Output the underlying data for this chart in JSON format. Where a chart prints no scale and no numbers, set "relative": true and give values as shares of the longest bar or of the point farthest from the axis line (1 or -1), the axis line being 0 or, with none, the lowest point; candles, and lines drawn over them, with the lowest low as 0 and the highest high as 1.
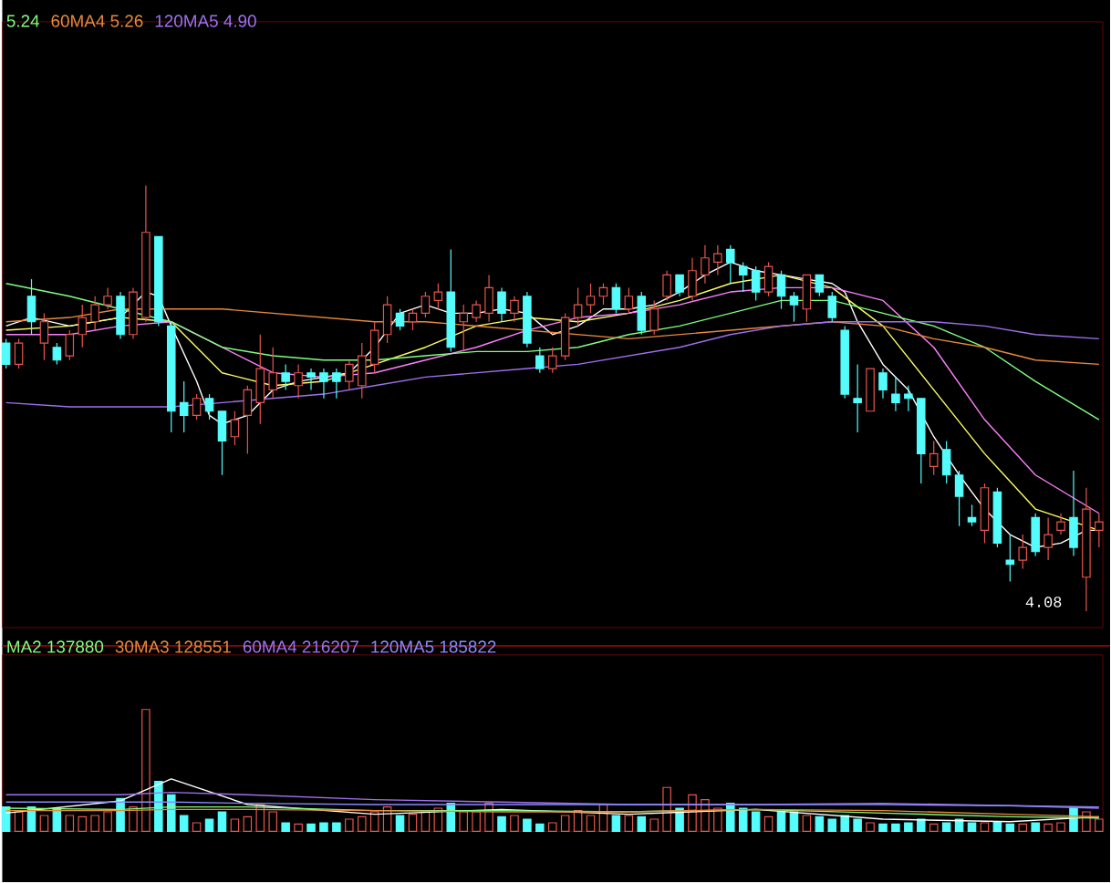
{
  "chart_data": [
    {
      "type": "candlestick",
      "relative": true,
      "categories": [
        null,
        null,
        null,
        null,
        null,
        null,
        null,
        null,
        null,
        null,
        null,
        null,
        null,
        null,
        null,
        null,
        null,
        null,
        null,
        null,
        null,
        null,
        null,
        null,
        null,
        null,
        null,
        null,
        null,
        null,
        null,
        null,
        null,
        null,
        null,
        null,
        null,
        null,
        null,
        null,
        null,
        null,
        null,
        null,
        null,
        null,
        null,
        null,
        null,
        null,
        null,
        null,
        null,
        null,
        null,
        null,
        null,
        null,
        null,
        null,
        null,
        null,
        null,
        null,
        null,
        null,
        null,
        null,
        null,
        null,
        null,
        null,
        null,
        null,
        null,
        null,
        null,
        null,
        null,
        null,
        null,
        null,
        null,
        null,
        null,
        null,
        null
      ],
      "ohlc": [
        [
          0.63,
          0.64,
          0.57,
          0.58
        ],
        [
          0.58,
          0.64,
          0.57,
          0.63
        ],
        [
          0.74,
          0.78,
          0.65,
          0.68
        ],
        [
          0.63,
          0.7,
          0.59,
          0.68
        ],
        [
          0.62,
          0.63,
          0.58,
          0.59
        ],
        [
          0.6,
          0.66,
          0.59,
          0.65
        ],
        [
          0.65,
          0.72,
          0.62,
          0.69
        ],
        [
          0.68,
          0.74,
          0.66,
          0.72
        ],
        [
          0.72,
          0.76,
          0.71,
          0.74
        ],
        [
          0.74,
          0.75,
          0.64,
          0.65
        ],
        [
          0.65,
          0.76,
          0.64,
          0.75
        ],
        [
          0.69,
          1,
          0.68,
          0.89
        ],
        [
          0.88,
          0.88,
          0.67,
          0.68
        ],
        [
          0.67,
          0.68,
          0.42,
          0.47
        ],
        [
          0.49,
          0.54,
          0.42,
          0.46
        ],
        [
          0.46,
          0.51,
          0.45,
          0.5
        ],
        [
          0.5,
          0.51,
          0.45,
          0.47
        ],
        [
          0.47,
          0.47,
          0.32,
          0.4
        ],
        [
          0.41,
          0.47,
          0.39,
          0.45
        ],
        [
          0.46,
          0.53,
          0.37,
          0.52
        ],
        [
          0.49,
          0.65,
          0.44,
          0.57
        ],
        [
          0.52,
          0.62,
          0.5,
          0.56
        ],
        [
          0.56,
          0.58,
          0.52,
          0.54
        ],
        [
          0.53,
          0.58,
          0.5,
          0.56
        ],
        [
          0.56,
          0.57,
          0.52,
          0.55
        ],
        [
          0.56,
          0.57,
          0.5,
          0.54
        ],
        [
          0.56,
          0.57,
          0.5,
          0.54
        ],
        [
          0.54,
          0.59,
          0.52,
          0.58
        ],
        [
          0.53,
          0.63,
          0.5,
          0.6
        ],
        [
          0.58,
          0.68,
          0.56,
          0.66
        ],
        [
          0.65,
          0.74,
          0.63,
          0.72
        ],
        [
          0.7,
          0.71,
          0.66,
          0.67
        ],
        [
          0.68,
          0.71,
          0.66,
          0.7
        ],
        [
          0.7,
          0.75,
          0.69,
          0.74
        ],
        [
          0.73,
          0.77,
          0.71,
          0.75
        ],
        [
          0.75,
          0.85,
          0.61,
          0.62
        ],
        [
          0.68,
          0.72,
          0.61,
          0.7
        ],
        [
          0.69,
          0.73,
          0.68,
          0.72
        ],
        [
          0.7,
          0.79,
          0.68,
          0.76
        ],
        [
          0.75,
          0.76,
          0.68,
          0.7
        ],
        [
          0.7,
          0.74,
          0.68,
          0.73
        ],
        [
          0.74,
          0.75,
          0.62,
          0.63
        ],
        [
          0.6,
          0.62,
          0.56,
          0.57
        ],
        [
          0.57,
          0.62,
          0.56,
          0.6
        ],
        [
          0.6,
          0.7,
          0.59,
          0.69
        ],
        [
          0.69,
          0.76,
          0.67,
          0.72
        ],
        [
          0.72,
          0.77,
          0.7,
          0.74
        ],
        [
          0.74,
          0.77,
          0.72,
          0.76
        ],
        [
          0.76,
          0.77,
          0.7,
          0.71
        ],
        [
          0.71,
          0.76,
          0.7,
          0.74
        ],
        [
          0.74,
          0.75,
          0.65,
          0.66
        ],
        [
          0.66,
          0.73,
          0.65,
          0.71
        ],
        [
          0.74,
          0.8,
          0.73,
          0.79
        ],
        [
          0.79,
          0.79,
          0.74,
          0.75
        ],
        [
          0.74,
          0.83,
          0.73,
          0.8
        ],
        [
          0.79,
          0.86,
          0.77,
          0.83
        ],
        [
          0.82,
          0.86,
          0.79,
          0.84
        ],
        [
          0.85,
          0.86,
          0.77,
          0.82
        ],
        [
          0.81,
          0.82,
          0.75,
          0.79
        ],
        [
          0.8,
          0.81,
          0.73,
          0.75
        ],
        [
          0.75,
          0.82,
          0.74,
          0.81
        ],
        [
          0.79,
          0.8,
          0.71,
          0.74
        ],
        [
          0.74,
          0.75,
          0.68,
          0.72
        ],
        [
          0.71,
          0.79,
          0.68,
          0.79
        ],
        [
          0.79,
          0.79,
          0.74,
          0.75
        ],
        [
          0.74,
          0.75,
          0.68,
          0.69
        ],
        [
          0.66,
          0.67,
          0.5,
          0.51
        ],
        [
          0.5,
          0.58,
          0.42,
          0.49
        ],
        [
          0.47,
          0.57,
          0.47,
          0.57
        ],
        [
          0.56,
          0.57,
          0.5,
          0.52
        ],
        [
          0.51,
          0.55,
          0.47,
          0.49
        ],
        [
          0.51,
          0.53,
          0.47,
          0.5
        ],
        [
          0.5,
          0.5,
          0.3,
          0.37
        ],
        [
          0.34,
          0.4,
          0.32,
          0.37
        ],
        [
          0.38,
          0.4,
          0.3,
          0.32
        ],
        [
          0.32,
          0.33,
          0.2,
          0.27
        ],
        [
          0.22,
          0.25,
          0.2,
          0.21
        ],
        [
          0.19,
          0.3,
          0.16,
          0.29
        ],
        [
          0.28,
          0.29,
          0.15,
          0.16
        ],
        [
          0.12,
          0.18,
          0.07,
          0.11
        ],
        [
          0.12,
          0.18,
          0.1,
          0.15
        ],
        [
          0.22,
          0.23,
          0.13,
          0.14
        ],
        [
          0.15,
          0.22,
          0.12,
          0.18
        ],
        [
          0.19,
          0.23,
          0.18,
          0.21
        ],
        [
          0.22,
          0.33,
          0.13,
          0.15
        ],
        [
          0.08,
          0.29,
          0,
          0.24
        ],
        [
          0.19,
          0.23,
          0.15,
          0.21
        ]
      ],
      "colors": [
        "#54fcfc",
        "#e8564e",
        "#54fcfc",
        "#e8564e",
        "#54fcfc",
        "#e8564e",
        "#e8564e",
        "#e8564e",
        "#e8564e",
        "#54fcfc",
        "#e8564e",
        "#e8564e",
        "#54fcfc",
        "#54fcfc",
        "#54fcfc",
        "#e8564e",
        "#54fcfc",
        "#54fcfc",
        "#e8564e",
        "#e8564e",
        "#e8564e",
        "#e8564e",
        "#54fcfc",
        "#e8564e",
        "#54fcfc",
        "#54fcfc",
        "#54fcfc",
        "#e8564e",
        "#e8564e",
        "#e8564e",
        "#e8564e",
        "#54fcfc",
        "#e8564e",
        "#e8564e",
        "#e8564e",
        "#54fcfc",
        "#e8564e",
        "#e8564e",
        "#e8564e",
        "#54fcfc",
        "#e8564e",
        "#54fcfc",
        "#54fcfc",
        "#e8564e",
        "#e8564e",
        "#e8564e",
        "#e8564e",
        "#e8564e",
        "#54fcfc",
        "#e8564e",
        "#54fcfc",
        "#e8564e",
        "#e8564e",
        "#54fcfc",
        "#e8564e",
        "#e8564e",
        "#e8564e",
        "#54fcfc",
        "#54fcfc",
        "#54fcfc",
        "#e8564e",
        "#54fcfc",
        "#54fcfc",
        "#e8564e",
        "#54fcfc",
        "#54fcfc",
        "#54fcfc",
        "#54fcfc",
        "#e8564e",
        "#54fcfc",
        "#54fcfc",
        "#54fcfc",
        "#54fcfc",
        "#e8564e",
        "#54fcfc",
        "#54fcfc",
        "#54fcfc",
        "#e8564e",
        "#54fcfc",
        "#54fcfc",
        "#e8564e",
        "#54fcfc",
        "#e8564e",
        "#e8564e",
        "#54fcfc",
        "#e8564e",
        "#e8564e"
      ],
      "series": [
        {
          "type": "line",
          "color": "#ffffff",
          "values": [
            0.67,
            null,
            0.69,
            null,
            null,
            0.67,
            null,
            null,
            null,
            0.69,
            null,
            0.75,
            0.74,
            0.67,
            null,
            0.54,
            0.46,
            0.44,
            null,
            0.46,
            null,
            0.52,
            null,
            0.54,
            null,
            0.55,
            null,
            0.56,
            null,
            0.62,
            null,
            0.7,
            null,
            0.72,
            null,
            0.7,
            null,
            0.7,
            null,
            0.71,
            null,
            0.7,
            null,
            0.65,
            null,
            0.67,
            null,
            0.71,
            null,
            0.71,
            null,
            0.72,
            null,
            0.75,
            null,
            0.79,
            null,
            0.82,
            null,
            0.8,
            null,
            0.79,
            null,
            0.78,
            null,
            0.77,
            0.75,
            0.68,
            null,
            0.58,
            null,
            0.52,
            null,
            0.41,
            null,
            0.32,
            null,
            0.24,
            null,
            0.18,
            null,
            0.15,
            null,
            0.16,
            null,
            0.19,
            0.19
          ]
        },
        {
          "type": "line",
          "color": "#ffff66",
          "values": [
            0.66,
            null,
            null,
            null,
            null,
            0.67,
            null,
            null,
            null,
            0.69,
            null,
            null,
            null,
            0.68,
            null,
            null,
            null,
            0.56,
            null,
            null,
            null,
            0.53,
            null,
            null,
            null,
            0.54,
            null,
            null,
            null,
            0.58,
            null,
            null,
            null,
            0.62,
            null,
            null,
            null,
            0.67,
            null,
            null,
            null,
            0.69,
            null,
            null,
            null,
            0.68,
            null,
            null,
            null,
            0.7,
            null,
            null,
            null,
            0.73,
            null,
            null,
            null,
            0.77,
            null,
            null,
            null,
            0.79,
            null,
            null,
            null,
            0.76,
            null,
            null,
            null,
            0.67,
            null,
            null,
            null,
            0.52,
            null,
            null,
            null,
            0.37,
            null,
            null,
            null,
            0.24,
            null,
            null,
            null,
            null,
            0.19
          ]
        },
        {
          "type": "line",
          "color": "#ff80ff",
          "values": [
            0.65,
            null,
            null,
            null,
            null,
            0.65,
            null,
            null,
            null,
            0.67,
            null,
            null,
            null,
            0.68,
            null,
            null,
            null,
            0.62,
            null,
            null,
            null,
            0.56,
            null,
            null,
            null,
            0.55,
            null,
            null,
            null,
            0.56,
            null,
            null,
            null,
            0.59,
            null,
            null,
            null,
            0.62,
            null,
            null,
            null,
            0.66,
            null,
            null,
            null,
            0.69,
            null,
            null,
            null,
            0.7,
            null,
            null,
            null,
            0.72,
            null,
            null,
            null,
            0.75,
            null,
            null,
            null,
            0.76,
            null,
            null,
            null,
            0.76,
            null,
            null,
            null,
            0.73,
            null,
            null,
            null,
            0.62,
            null,
            null,
            null,
            0.45,
            null,
            null,
            null,
            0.32,
            null,
            null,
            null,
            null,
            0.23
          ]
        },
        {
          "type": "line",
          "color": "#80ff80",
          "name": "5.24",
          "values": [
            0.77,
            null,
            null,
            null,
            null,
            0.74,
            null,
            null,
            null,
            0.71,
            null,
            null,
            null,
            0.68,
            null,
            null,
            null,
            0.62,
            null,
            null,
            null,
            0.6,
            null,
            null,
            null,
            0.59,
            null,
            null,
            null,
            0.59,
            null,
            null,
            null,
            0.6,
            null,
            null,
            null,
            0.61,
            null,
            null,
            null,
            0.61,
            null,
            null,
            null,
            0.62,
            null,
            null,
            null,
            0.65,
            null,
            null,
            null,
            0.67,
            null,
            null,
            null,
            0.7,
            null,
            null,
            null,
            0.73,
            null,
            null,
            null,
            0.73,
            null,
            null,
            null,
            0.7,
            null,
            null,
            null,
            0.67,
            null,
            null,
            null,
            0.62,
            null,
            null,
            null,
            0.54,
            null,
            null,
            null,
            null,
            0.45
          ]
        },
        {
          "type": "line",
          "color": "#e8893a",
          "name": "60MA4 5.26",
          "values": [
            0.68,
            null,
            null,
            null,
            null,
            0.69,
            null,
            null,
            null,
            0.71,
            null,
            null,
            null,
            0.71,
            null,
            null,
            null,
            0.71,
            null,
            null,
            null,
            0.7,
            null,
            null,
            null,
            0.69,
            null,
            null,
            null,
            0.68,
            null,
            null,
            null,
            0.68,
            null,
            null,
            null,
            0.67,
            null,
            null,
            null,
            0.66,
            null,
            null,
            null,
            0.65,
            null,
            null,
            null,
            0.64,
            null,
            null,
            null,
            0.65,
            null,
            null,
            null,
            0.66,
            null,
            null,
            null,
            0.67,
            null,
            null,
            null,
            0.68,
            null,
            null,
            null,
            0.67,
            null,
            null,
            null,
            0.64,
            null,
            null,
            null,
            0.62,
            null,
            null,
            null,
            0.59,
            null,
            null,
            null,
            null,
            0.58
          ]
        },
        {
          "type": "line",
          "color": "#a070f0",
          "name": "120MA5 4.90",
          "values": [
            0.49,
            null,
            null,
            null,
            null,
            0.48,
            null,
            null,
            null,
            0.48,
            null,
            null,
            null,
            0.48,
            null,
            null,
            null,
            0.49,
            null,
            null,
            null,
            0.5,
            null,
            null,
            null,
            0.51,
            null,
            null,
            null,
            0.53,
            null,
            null,
            null,
            0.55,
            null,
            null,
            null,
            0.56,
            null,
            null,
            null,
            0.57,
            null,
            null,
            null,
            0.58,
            null,
            null,
            null,
            0.6,
            null,
            null,
            null,
            0.62,
            null,
            null,
            null,
            0.65,
            null,
            null,
            null,
            0.67,
            null,
            null,
            null,
            0.68,
            null,
            null,
            null,
            0.68,
            null,
            null,
            null,
            0.68,
            null,
            null,
            null,
            0.67,
            null,
            null,
            null,
            0.65,
            null,
            null,
            null,
            null,
            0.64
          ]
        }
      ],
      "annotations": [
        "4.08"
      ]
    },
    {
      "type": "bar",
      "relative": true,
      "categories": [
        null,
        null,
        null,
        null,
        null,
        null,
        null,
        null,
        null,
        null,
        null,
        null,
        null,
        null,
        null,
        null,
        null,
        null,
        null,
        null,
        null,
        null,
        null,
        null,
        null,
        null,
        null,
        null,
        null,
        null,
        null,
        null,
        null,
        null,
        null,
        null,
        null,
        null,
        null,
        null,
        null,
        null,
        null,
        null,
        null,
        null,
        null,
        null,
        null,
        null,
        null,
        null,
        null,
        null,
        null,
        null,
        null,
        null,
        null,
        null,
        null,
        null,
        null,
        null,
        null,
        null,
        null,
        null,
        null,
        null,
        null,
        null,
        null,
        null,
        null,
        null,
        null,
        null,
        null,
        null,
        null,
        null,
        null,
        null,
        null,
        null,
        null
      ],
      "series": [
        {
          "type": "bar",
          "values": [
            0.2,
            0.16,
            0.2,
            0.13,
            0.19,
            0.13,
            0.12,
            0.13,
            0.16,
            0.27,
            0.2,
            1,
            0.41,
            0.3,
            0.13,
            0.07,
            0.1,
            0.16,
            0.1,
            0.12,
            0.22,
            0.16,
            0.07,
            0.06,
            0.06,
            0.07,
            0.07,
            0.1,
            0.12,
            0.16,
            0.2,
            0.13,
            0.14,
            0.16,
            0.19,
            0.23,
            0.16,
            0.16,
            0.23,
            0.12,
            0.13,
            0.1,
            0.06,
            0.07,
            0.13,
            0.17,
            0.13,
            0.22,
            0.13,
            0.13,
            0.12,
            0.1,
            0.36,
            0.19,
            0.3,
            0.26,
            0.19,
            0.23,
            0.19,
            0.16,
            0.12,
            0.16,
            0.16,
            0.13,
            0.12,
            0.1,
            0.13,
            0.1,
            0.07,
            0.06,
            0.06,
            0.07,
            0.1,
            0.06,
            0.07,
            0.1,
            0.07,
            0.07,
            0.08,
            0.06,
            0.06,
            0.07,
            0.06,
            0.07,
            0.2,
            0.16,
            0.1
          ],
          "colors": [
            "#54fcfc",
            "#e8564e",
            "#54fcfc",
            "#e8564e",
            "#54fcfc",
            "#e8564e",
            "#e8564e",
            "#e8564e",
            "#e8564e",
            "#54fcfc",
            "#e8564e",
            "#e8564e",
            "#54fcfc",
            "#54fcfc",
            "#54fcfc",
            "#e8564e",
            "#54fcfc",
            "#54fcfc",
            "#e8564e",
            "#e8564e",
            "#e8564e",
            "#e8564e",
            "#54fcfc",
            "#e8564e",
            "#54fcfc",
            "#54fcfc",
            "#54fcfc",
            "#e8564e",
            "#e8564e",
            "#e8564e",
            "#e8564e",
            "#54fcfc",
            "#e8564e",
            "#e8564e",
            "#e8564e",
            "#54fcfc",
            "#e8564e",
            "#e8564e",
            "#e8564e",
            "#54fcfc",
            "#e8564e",
            "#54fcfc",
            "#54fcfc",
            "#e8564e",
            "#e8564e",
            "#e8564e",
            "#e8564e",
            "#e8564e",
            "#54fcfc",
            "#e8564e",
            "#54fcfc",
            "#e8564e",
            "#e8564e",
            "#54fcfc",
            "#e8564e",
            "#e8564e",
            "#e8564e",
            "#54fcfc",
            "#54fcfc",
            "#54fcfc",
            "#e8564e",
            "#54fcfc",
            "#54fcfc",
            "#e8564e",
            "#54fcfc",
            "#54fcfc",
            "#54fcfc",
            "#54fcfc",
            "#e8564e",
            "#54fcfc",
            "#54fcfc",
            "#54fcfc",
            "#54fcfc",
            "#e8564e",
            "#54fcfc",
            "#54fcfc",
            "#54fcfc",
            "#e8564e",
            "#54fcfc",
            "#54fcfc",
            "#e8564e",
            "#54fcfc",
            "#e8564e",
            "#e8564e",
            "#54fcfc",
            "#e8564e",
            "#e8564e"
          ]
        },
        {
          "type": "line",
          "color": "#ffffff",
          "values": [
            0.15,
            null,
            null,
            null,
            null,
            null,
            null,
            null,
            null,
            0.25,
            null,
            null,
            null,
            0.43,
            null,
            null,
            null,
            null,
            null,
            0.22,
            null,
            null,
            null,
            null,
            null,
            null,
            null,
            null,
            null,
            0.14,
            null,
            null,
            null,
            null,
            null,
            null,
            null,
            null,
            null,
            0.18,
            null,
            null,
            null,
            null,
            null,
            null,
            null,
            null,
            null,
            0.14,
            null,
            null,
            null,
            null,
            null,
            null,
            null,
            null,
            null,
            0.18,
            null,
            null,
            null,
            null,
            null,
            null,
            null,
            null,
            null,
            0.1,
            null,
            null,
            null,
            null,
            null,
            null,
            null,
            null,
            null,
            0.08,
            null,
            null,
            null,
            null,
            null,
            null,
            0.12
          ]
        },
        {
          "type": "line",
          "color": "#80ff80",
          "name": "MA2 137880",
          "values": [
            0.19,
            null,
            null,
            null,
            null,
            null,
            null,
            null,
            null,
            0.18,
            null,
            null,
            null,
            0.2,
            null,
            null,
            null,
            null,
            null,
            0.2,
            null,
            null,
            null,
            null,
            null,
            null,
            null,
            null,
            null,
            0.17,
            null,
            null,
            null,
            null,
            null,
            null,
            null,
            null,
            null,
            0.17,
            null,
            null,
            null,
            null,
            null,
            null,
            null,
            null,
            null,
            0.16,
            null,
            null,
            null,
            null,
            null,
            null,
            null,
            null,
            null,
            0.18,
            null,
            null,
            null,
            null,
            null,
            null,
            null,
            null,
            null,
            0.15,
            null,
            null,
            null,
            null,
            null,
            null,
            null,
            null,
            null,
            0.12,
            null,
            null,
            null,
            null,
            null,
            null,
            0.11
          ]
        },
        {
          "type": "line",
          "color": "#e8893a",
          "name": "30MA3 128551",
          "values": [
            0.17,
            null,
            null,
            null,
            null,
            null,
            null,
            null,
            null,
            0.17,
            null,
            null,
            null,
            0.18,
            null,
            null,
            null,
            null,
            null,
            0.18,
            null,
            null,
            null,
            null,
            null,
            null,
            null,
            null,
            null,
            0.17,
            null,
            null,
            null,
            null,
            null,
            null,
            null,
            null,
            null,
            0.16,
            null,
            null,
            null,
            null,
            null,
            null,
            null,
            null,
            null,
            0.16,
            null,
            null,
            null,
            null,
            null,
            null,
            null,
            null,
            null,
            0.18,
            null,
            null,
            null,
            null,
            null,
            null,
            null,
            null,
            null,
            0.17,
            null,
            null,
            null,
            null,
            null,
            null,
            null,
            null,
            null,
            0.14,
            null,
            null,
            null,
            null,
            null,
            null,
            0.12
          ]
        },
        {
          "type": "line",
          "color": "#a070f0",
          "name": "60MA4 216207",
          "values": [
            0.3,
            null,
            null,
            null,
            null,
            null,
            null,
            null,
            null,
            0.3,
            null,
            null,
            null,
            0.32,
            null,
            null,
            null,
            null,
            null,
            0.3,
            null,
            null,
            null,
            null,
            null,
            null,
            null,
            null,
            null,
            0.26,
            null,
            null,
            null,
            null,
            null,
            null,
            null,
            null,
            null,
            0.24,
            null,
            null,
            null,
            null,
            null,
            null,
            null,
            null,
            null,
            0.22,
            null,
            null,
            null,
            null,
            null,
            null,
            null,
            null,
            null,
            0.22,
            null,
            null,
            null,
            null,
            null,
            null,
            null,
            null,
            null,
            0.23,
            null,
            null,
            null,
            null,
            null,
            null,
            null,
            null,
            null,
            0.21,
            null,
            null,
            null,
            null,
            null,
            null,
            0.19
          ]
        },
        {
          "type": "line",
          "color": "#8a8aff",
          "name": "120MA5 185822",
          "values": [
            0.24,
            null,
            null,
            null,
            null,
            null,
            null,
            null,
            null,
            0.24,
            null,
            null,
            null,
            0.24,
            null,
            null,
            null,
            null,
            null,
            0.23,
            null,
            null,
            null,
            null,
            null,
            null,
            null,
            null,
            null,
            0.22,
            null,
            null,
            null,
            null,
            null,
            null,
            null,
            null,
            null,
            0.22,
            null,
            null,
            null,
            null,
            null,
            null,
            null,
            null,
            null,
            0.22,
            null,
            null,
            null,
            null,
            null,
            null,
            null,
            null,
            null,
            0.22,
            null,
            null,
            null,
            null,
            null,
            null,
            null,
            null,
            null,
            0.22,
            null,
            null,
            null,
            null,
            null,
            null,
            null,
            null,
            null,
            0.21,
            null,
            null,
            null,
            null,
            null,
            null,
            0.2
          ]
        }
      ]
    }
  ]
}
